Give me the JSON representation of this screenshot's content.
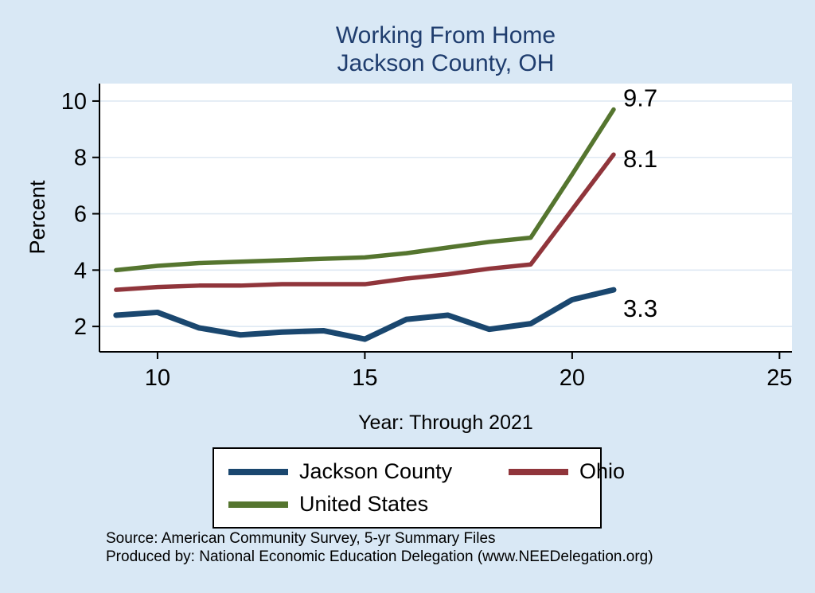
{
  "chart_data": {
    "type": "line",
    "title": "Working From Home",
    "subtitle": "Jackson County, OH",
    "xlabel": "Year: Through 2021",
    "ylabel": "Percent",
    "xlim": [
      8.6,
      25.3
    ],
    "ylim": [
      1.1,
      10.62
    ],
    "xticks": [
      10,
      15,
      20,
      25
    ],
    "yticks": [
      2,
      4,
      6,
      8,
      10
    ],
    "grid": true,
    "legend_position": "bottom",
    "x": [
      9,
      10,
      11,
      12,
      13,
      14,
      15,
      16,
      17,
      18,
      19,
      20,
      21
    ],
    "series": [
      {
        "name": "Jackson County",
        "color": "#1a476f",
        "line_width": 7,
        "end_label": "3.3",
        "label_dy": 34,
        "values": [
          2.4,
          2.5,
          1.95,
          1.7,
          1.8,
          1.85,
          1.55,
          2.25,
          2.4,
          1.9,
          2.1,
          2.95,
          3.3
        ]
      },
      {
        "name": "Ohio",
        "color": "#90353b",
        "line_width": 5.5,
        "end_label": "8.1",
        "label_dy": 16,
        "values": [
          3.3,
          3.4,
          3.45,
          3.45,
          3.5,
          3.5,
          3.5,
          3.7,
          3.85,
          4.05,
          4.2,
          6.15,
          8.1
        ]
      },
      {
        "name": "United States",
        "color": "#55752f",
        "line_width": 5.5,
        "end_label": "9.7",
        "label_dy": -4,
        "values": [
          4.0,
          4.15,
          4.25,
          4.3,
          4.35,
          4.4,
          4.45,
          4.6,
          4.8,
          5.0,
          5.15,
          7.4,
          9.7
        ]
      }
    ]
  },
  "footer": {
    "source": "Source: American Community Survey, 5-yr Summary Files",
    "produced_by": "Produced by: National Economic Education Delegation (www.NEEDelegation.org)"
  },
  "colors": {
    "background": "#d9e8f5",
    "plot_background": "#ffffff",
    "title": "#1f3d6e",
    "axis": "#000000",
    "gridline": "#dfe9f3"
  }
}
